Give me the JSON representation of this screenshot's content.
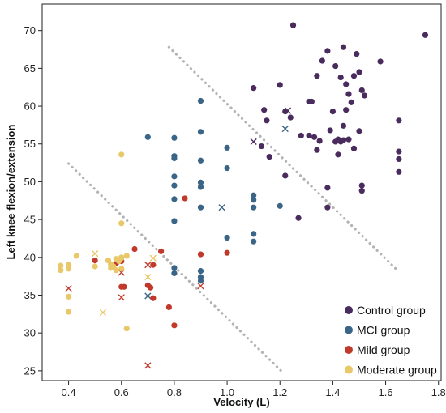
{
  "chart_data": {
    "type": "scatter",
    "xlabel": "Velocity (L)",
    "ylabel": "Left knee flexion/extension",
    "xlim": [
      0.3,
      1.81
    ],
    "ylim": [
      23.7,
      73.5
    ],
    "xticks": [
      "0.4",
      "0.6",
      "0.8",
      "1.0",
      "1.2",
      "1.4",
      "1.6",
      "1.8"
    ],
    "xtick_values": [
      0.4,
      0.6,
      0.8,
      1.0,
      1.2,
      1.4,
      1.6,
      1.8
    ],
    "yticks": [
      "25",
      "30",
      "35",
      "40",
      "45",
      "50",
      "55",
      "60",
      "65",
      "70"
    ],
    "ytick_values": [
      25,
      30,
      35,
      40,
      45,
      50,
      55,
      60,
      65,
      70
    ],
    "grid": false,
    "legend_position": "bottom-right",
    "legend": [
      {
        "label": "Control group",
        "color": "#4a2b5e"
      },
      {
        "label": "MCI group",
        "color": "#3a6587"
      },
      {
        "label": "Mild group",
        "color": "#c0392b"
      },
      {
        "label": "Moderate group",
        "color": "#e9c86a"
      }
    ],
    "boundary_lines": [
      {
        "x": [
          0.4,
          1.21
        ],
        "y": [
          52.4,
          24.8
        ],
        "color": "#b3b3b3",
        "style": "dotted"
      },
      {
        "x": [
          0.78,
          1.65
        ],
        "y": [
          67.8,
          38.1
        ],
        "color": "#b3b3b3",
        "style": "dotted"
      }
    ],
    "series": [
      {
        "name": "Control group",
        "color": "#4a2b5e",
        "points": [
          [
            1.1,
            62.4
          ],
          [
            1.14,
            59.5
          ],
          [
            1.15,
            58.1
          ],
          [
            1.2,
            62.8
          ],
          [
            1.22,
            59.3
          ],
          [
            1.24,
            58.5
          ],
          [
            1.25,
            70.7
          ],
          [
            1.28,
            56.1
          ],
          [
            1.31,
            60.6
          ],
          [
            1.32,
            60.6
          ],
          [
            1.33,
            55.9
          ],
          [
            1.34,
            64.0
          ],
          [
            1.35,
            55.4
          ],
          [
            1.36,
            66.0
          ],
          [
            1.38,
            67.3
          ],
          [
            1.39,
            56.8
          ],
          [
            1.4,
            59.3
          ],
          [
            1.41,
            55.3
          ],
          [
            1.42,
            55.6
          ],
          [
            1.43,
            55.3
          ],
          [
            1.44,
            55.5
          ],
          [
            1.45,
            59.5
          ],
          [
            1.46,
            55.6
          ],
          [
            1.46,
            61.6
          ],
          [
            1.47,
            60.5
          ],
          [
            1.48,
            64.0
          ],
          [
            1.49,
            66.9
          ],
          [
            1.5,
            64.5
          ],
          [
            1.43,
            63.8
          ],
          [
            1.45,
            62.9
          ],
          [
            1.41,
            65.3
          ],
          [
            1.44,
            67.8
          ],
          [
            1.5,
            56.7
          ],
          [
            1.51,
            62.1
          ],
          [
            1.52,
            61.4
          ],
          [
            1.51,
            49.5
          ],
          [
            1.51,
            48.8
          ],
          [
            1.58,
            65.9
          ],
          [
            1.65,
            58.1
          ],
          [
            1.65,
            54.0
          ],
          [
            1.65,
            53.0
          ],
          [
            1.65,
            51.3
          ],
          [
            1.75,
            69.4
          ],
          [
            1.38,
            49.2
          ],
          [
            1.38,
            46.6
          ],
          [
            1.42,
            53.6
          ],
          [
            1.27,
            45.2
          ],
          [
            1.22,
            50.8
          ],
          [
            1.16,
            53.3
          ],
          [
            1.13,
            54.7
          ],
          [
            1.34,
            54.2
          ],
          [
            1.44,
            57.4
          ],
          [
            1.31,
            56.1
          ],
          [
            1.48,
            54.4
          ]
        ],
        "crosses": [
          [
            1.1,
            55.3
          ],
          [
            1.23,
            59.4
          ]
        ]
      },
      {
        "name": "MCI group",
        "color": "#3a6587",
        "points": [
          [
            0.7,
            55.9
          ],
          [
            0.8,
            55.8
          ],
          [
            0.8,
            53.4
          ],
          [
            0.8,
            53.1
          ],
          [
            0.8,
            50.7
          ],
          [
            0.8,
            49.5
          ],
          [
            0.8,
            47.7
          ],
          [
            0.8,
            44.8
          ],
          [
            0.8,
            38.6
          ],
          [
            0.8,
            37.9
          ],
          [
            0.9,
            60.7
          ],
          [
            0.9,
            56.6
          ],
          [
            0.9,
            52.8
          ],
          [
            0.9,
            49.9
          ],
          [
            0.9,
            49.3
          ],
          [
            0.9,
            46.6
          ],
          [
            0.9,
            38.2
          ],
          [
            0.9,
            37.4
          ],
          [
            0.9,
            36.9
          ],
          [
            1.0,
            54.5
          ],
          [
            1.0,
            51.8
          ],
          [
            1.0,
            42.6
          ],
          [
            1.1,
            48.2
          ],
          [
            1.1,
            47.6
          ],
          [
            1.1,
            46.6
          ],
          [
            1.1,
            43.1
          ],
          [
            1.1,
            42.1
          ],
          [
            1.2,
            46.8
          ]
        ],
        "crosses": [
          [
            0.7,
            34.9
          ],
          [
            0.98,
            46.6
          ],
          [
            1.22,
            57.0
          ]
        ]
      },
      {
        "name": "Mild group",
        "color": "#c0392b",
        "points": [
          [
            0.5,
            39.6
          ],
          [
            0.58,
            39.2
          ],
          [
            0.6,
            39.5
          ],
          [
            0.6,
            36.1
          ],
          [
            0.61,
            36.1
          ],
          [
            0.65,
            41.1
          ],
          [
            0.72,
            39.0
          ],
          [
            0.72,
            34.6
          ],
          [
            0.75,
            40.8
          ],
          [
            0.78,
            33.4
          ],
          [
            0.8,
            31.0
          ],
          [
            0.84,
            47.8
          ],
          [
            0.9,
            40.4
          ],
          [
            1.0,
            40.6
          ],
          [
            0.7,
            36.3
          ],
          [
            0.71,
            36.0
          ]
        ],
        "crosses": [
          [
            0.4,
            35.9
          ],
          [
            0.6,
            38.0
          ],
          [
            0.6,
            34.7
          ],
          [
            0.7,
            39.0
          ],
          [
            0.7,
            25.7
          ],
          [
            0.9,
            36.2
          ]
        ]
      },
      {
        "name": "Moderate group",
        "color": "#e9c86a",
        "points": [
          [
            0.37,
            38.9
          ],
          [
            0.37,
            38.3
          ],
          [
            0.4,
            39.0
          ],
          [
            0.4,
            38.5
          ],
          [
            0.4,
            34.8
          ],
          [
            0.4,
            32.8
          ],
          [
            0.43,
            40.2
          ],
          [
            0.5,
            38.8
          ],
          [
            0.55,
            39.6
          ],
          [
            0.56,
            39.1
          ],
          [
            0.57,
            38.8
          ],
          [
            0.58,
            39.8
          ],
          [
            0.59,
            39.5
          ],
          [
            0.6,
            39.9
          ],
          [
            0.6,
            38.5
          ],
          [
            0.6,
            53.6
          ],
          [
            0.6,
            44.5
          ],
          [
            0.6,
            40.0
          ],
          [
            0.62,
            40.2
          ],
          [
            0.62,
            30.6
          ],
          [
            0.58,
            38.3
          ],
          [
            0.56,
            38.6
          ]
        ],
        "crosses": [
          [
            0.5,
            40.5
          ],
          [
            0.53,
            32.7
          ],
          [
            0.7,
            37.4
          ],
          [
            0.72,
            39.9
          ]
        ]
      }
    ]
  }
}
